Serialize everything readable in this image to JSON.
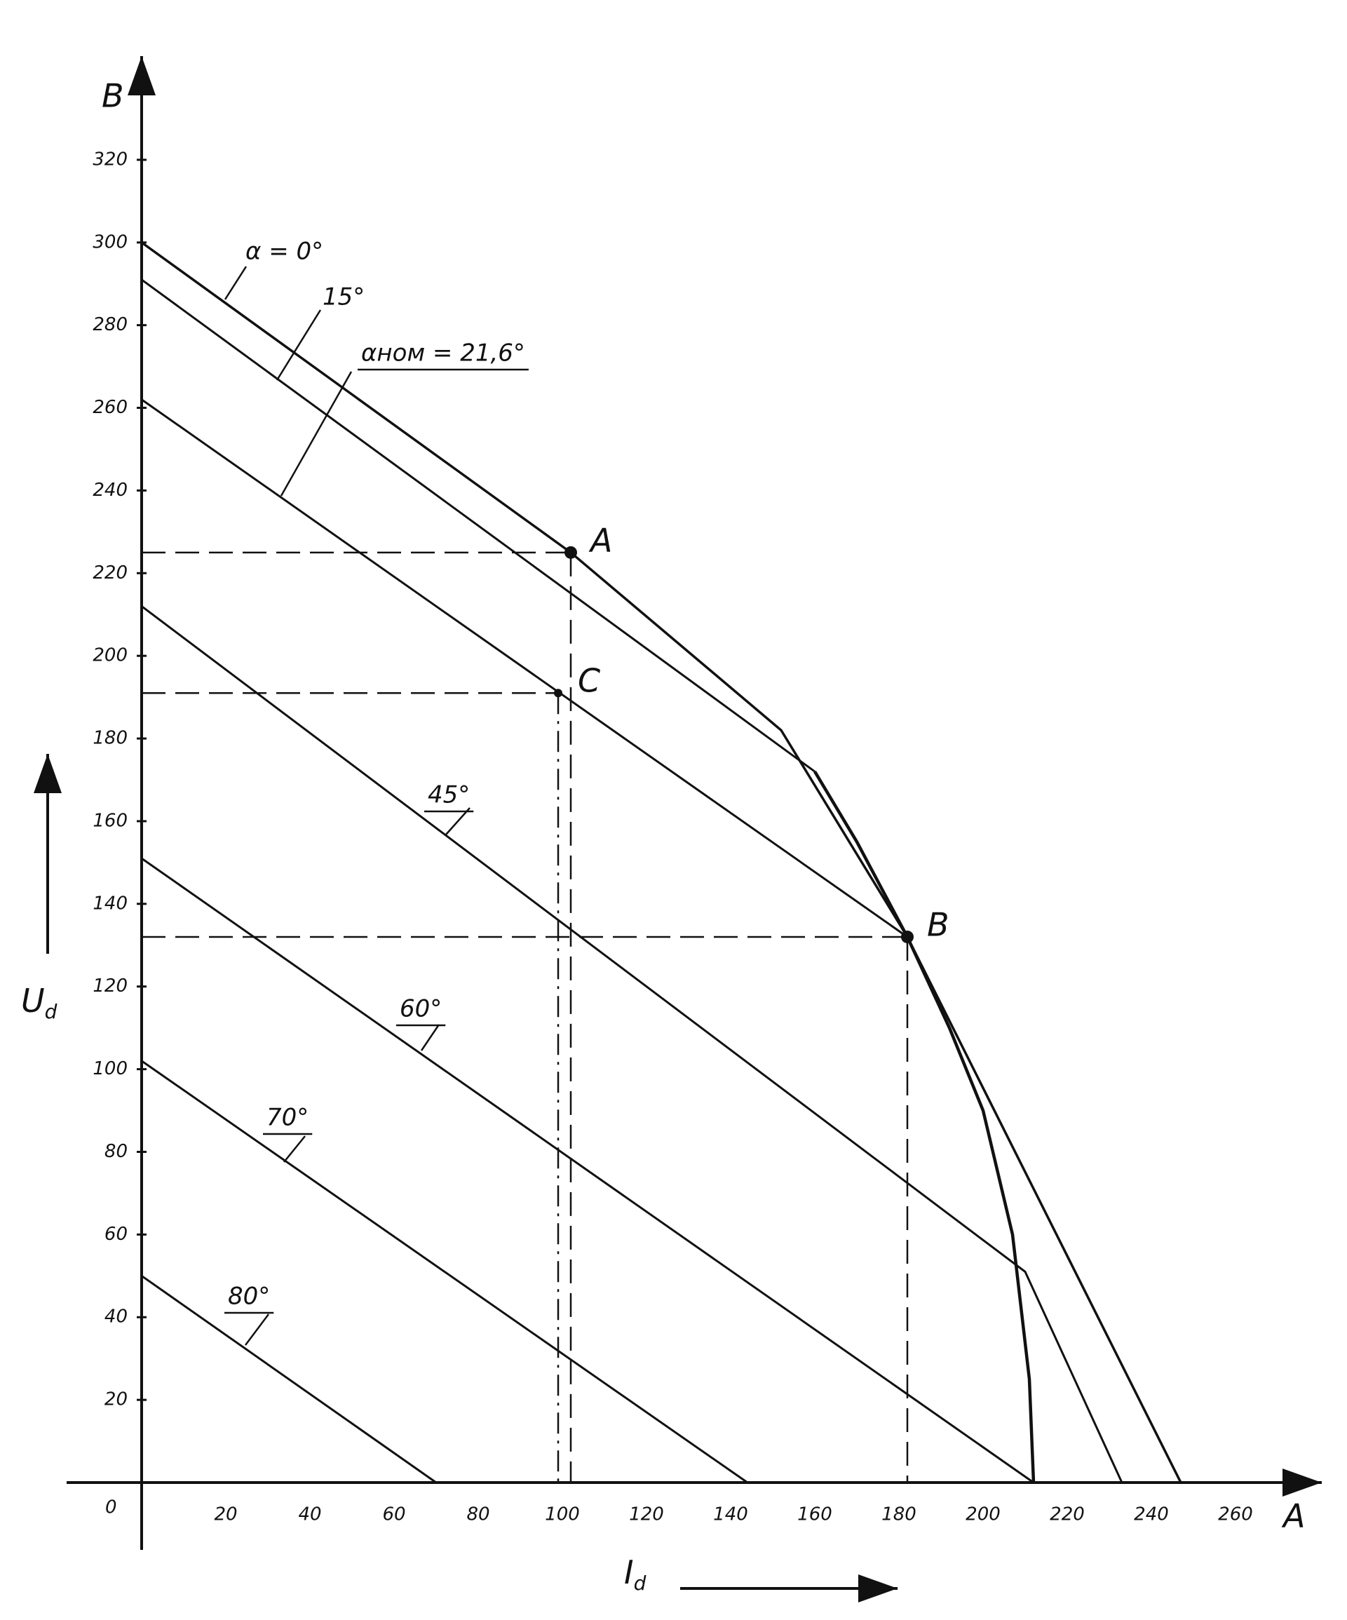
{
  "chart_data": {
    "type": "line",
    "y_unit": "B",
    "x_unit": "A",
    "origin_label": "0",
    "ylabel": {
      "main": "U",
      "sub": "d"
    },
    "xlabel": {
      "main": "I",
      "sub": "d"
    },
    "xlim": [
      0,
      280
    ],
    "ylim": [
      0,
      340
    ],
    "xticks": [
      20,
      40,
      60,
      80,
      100,
      120,
      140,
      160,
      180,
      200,
      220,
      240,
      260
    ],
    "yticks": [
      20,
      40,
      60,
      80,
      100,
      120,
      140,
      160,
      180,
      200,
      220,
      240,
      260,
      280,
      300,
      320
    ],
    "series": [
      {
        "name": "α = 0°",
        "x": [
          0,
          102,
          152,
          182,
          247
        ],
        "values": [
          300,
          225,
          182,
          132,
          0
        ]
      },
      {
        "name": "15°",
        "x": [
          0,
          160
        ],
        "values": [
          291,
          172
        ]
      },
      {
        "name": "αном = 21,6°",
        "x": [
          0,
          182
        ],
        "values": [
          262,
          132
        ]
      },
      {
        "name": "45°",
        "x": [
          0,
          210,
          233
        ],
        "values": [
          212,
          51,
          0
        ]
      },
      {
        "name": "60°",
        "x": [
          0,
          212
        ],
        "values": [
          151,
          0
        ]
      },
      {
        "name": "70°",
        "x": [
          0,
          144
        ],
        "values": [
          102,
          0
        ]
      },
      {
        "name": "80°",
        "x": [
          0,
          70
        ],
        "values": [
          50,
          0
        ]
      }
    ],
    "boundary": {
      "x": [
        160,
        170,
        182,
        192,
        200,
        207,
        211,
        212
      ],
      "values": [
        172,
        155,
        132,
        110,
        90,
        60,
        25,
        0
      ]
    },
    "points": [
      {
        "label": "A",
        "x": 102,
        "y": 225
      },
      {
        "label": "C",
        "x": 99,
        "y": 191
      },
      {
        "label": "B",
        "x": 182,
        "y": 132
      }
    ]
  }
}
